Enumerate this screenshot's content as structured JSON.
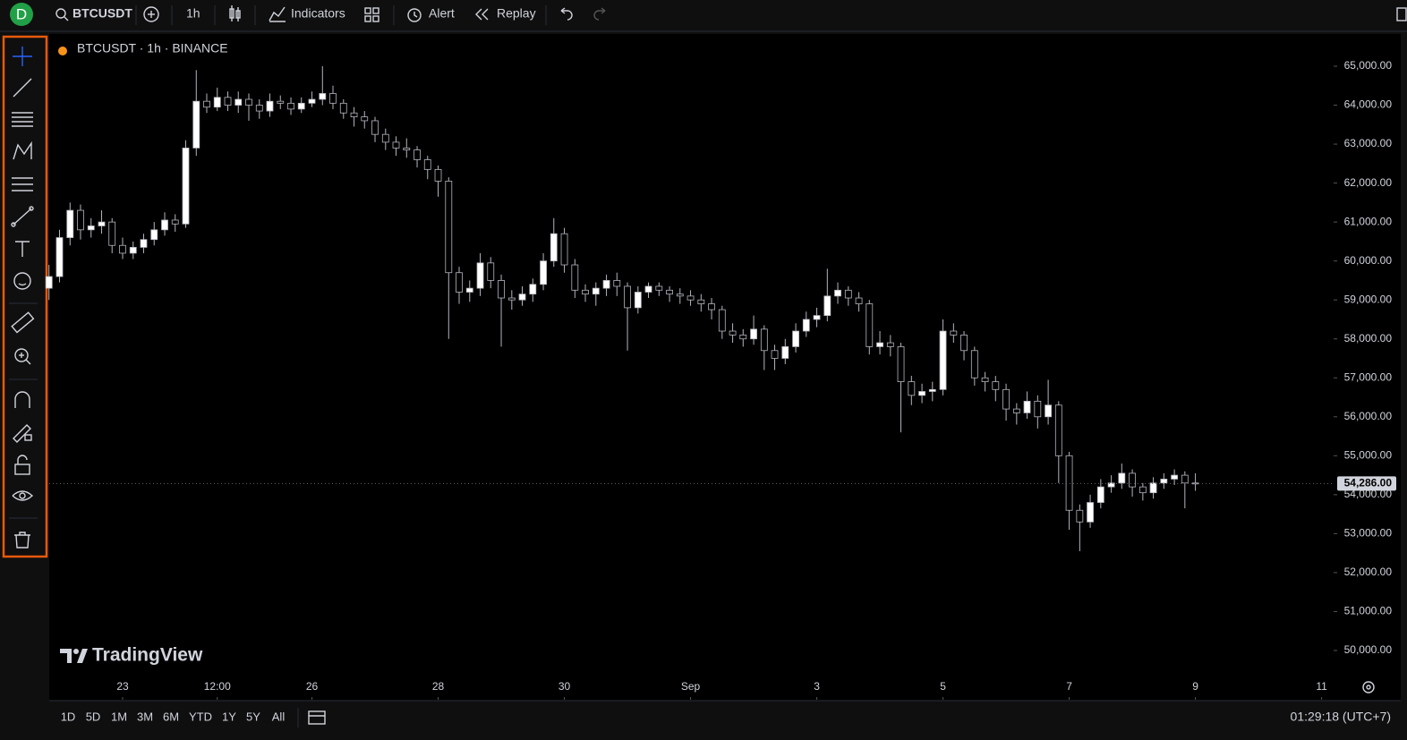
{
  "toolbar": {
    "avatar": "D",
    "symbol": "BTCUSDT",
    "interval": "1h",
    "indicators": "Indicators",
    "alert": "Alert",
    "replay": "Replay"
  },
  "chart_data": {
    "type": "candlestick",
    "title": "BTCUSDT · 1h · BINANCE",
    "watermark": "TradingView",
    "up_color": "#ffffff",
    "down_color": "#000000",
    "wick_color": "#b2b5be",
    "grid": false,
    "x": [
      21.833,
      22,
      22.167,
      22.333,
      22.5,
      22.667,
      22.833,
      23,
      23.167,
      23.333,
      23.5,
      23.667,
      23.833,
      24,
      24.167,
      24.333,
      24.5,
      24.667,
      24.833,
      25,
      25.167,
      25.333,
      25.5,
      25.667,
      25.833,
      26,
      26.167,
      26.333,
      26.5,
      26.667,
      26.833,
      27,
      27.167,
      27.333,
      27.5,
      27.667,
      27.833,
      28,
      28.167,
      28.333,
      28.5,
      28.667,
      28.833,
      29,
      29.167,
      29.333,
      29.5,
      29.667,
      29.833,
      30,
      30.167,
      30.333,
      30.5,
      30.667,
      30.833,
      31,
      31.167,
      31.333,
      31.5,
      31.667,
      31.833,
      32,
      32.167,
      32.333,
      32.5,
      32.667,
      32.833,
      33,
      33.167,
      33.333,
      33.5,
      33.667,
      33.833,
      34,
      34.167,
      34.333,
      34.5,
      34.667,
      34.833,
      35,
      35.167,
      35.333,
      35.5,
      35.667,
      35.833,
      36,
      36.167,
      36.333,
      36.5,
      36.667,
      36.833,
      37,
      37.167,
      37.333,
      37.5,
      37.667,
      37.833,
      38,
      38.167,
      38.333,
      38.5,
      38.667,
      38.833,
      39,
      39.167,
      39.333,
      39.5,
      39.667,
      39.833,
      40
    ],
    "open": [
      59300,
      59600,
      60600,
      61300,
      60800,
      60900,
      61000,
      60400,
      60200,
      60350,
      60550,
      60800,
      61050,
      60950,
      62900,
      64100,
      63950,
      64200,
      64000,
      64150,
      64000,
      63850,
      64100,
      64050,
      63900,
      64050,
      64150,
      64300,
      64050,
      63800,
      63700,
      63600,
      63250,
      63050,
      62900,
      62850,
      62600,
      62350,
      62050,
      59700,
      59200,
      59300,
      59950,
      59500,
      59050,
      59000,
      59150,
      59400,
      60000,
      60700,
      59900,
      59250,
      59150,
      59300,
      59500,
      59350,
      58800,
      59200,
      59350,
      59250,
      59150,
      59100,
      59000,
      58900,
      58750,
      58200,
      58100,
      58000,
      58250,
      57700,
      57500,
      57800,
      58200,
      58500,
      58600,
      59100,
      59250,
      59050,
      58900,
      57800,
      57900,
      57800,
      56900,
      56550,
      56650,
      56700,
      58200,
      58100,
      57700,
      57000,
      56900,
      56700,
      56200,
      56100,
      56400,
      56000,
      56300,
      55000,
      53600,
      53300,
      53800,
      54200,
      54300,
      54550,
      54200,
      54050,
      54300,
      54400,
      54500,
      54300
    ],
    "high": [
      59900,
      60800,
      61500,
      61450,
      61100,
      61300,
      61100,
      60600,
      60500,
      60700,
      61000,
      61250,
      61200,
      63100,
      64900,
      64300,
      64450,
      64350,
      64350,
      64300,
      64150,
      64300,
      64250,
      64200,
      64200,
      64350,
      65000,
      64500,
      64150,
      63950,
      63850,
      63700,
      63400,
      63200,
      63150,
      62950,
      62700,
      62450,
      62150,
      59850,
      59500,
      60200,
      60100,
      59650,
      59250,
      59350,
      59550,
      60200,
      61100,
      60850,
      60050,
      59400,
      59450,
      59650,
      59700,
      59450,
      59350,
      59450,
      59450,
      59350,
      59300,
      59250,
      59150,
      59050,
      58850,
      58400,
      58250,
      58600,
      58350,
      57850,
      58000,
      58400,
      58700,
      58800,
      59800,
      59450,
      59350,
      59200,
      59000,
      58200,
      58100,
      57900,
      57050,
      56850,
      56900,
      58500,
      58400,
      58200,
      57800,
      57150,
      57050,
      56850,
      56350,
      56650,
      56550,
      56950,
      56400,
      55100,
      53750,
      54000,
      54400,
      54500,
      54800,
      54650,
      54300,
      54450,
      54550,
      54650,
      54600,
      54550
    ],
    "low": [
      59000,
      59450,
      60400,
      60550,
      60600,
      60700,
      60200,
      60050,
      60050,
      60200,
      60400,
      60650,
      60750,
      60850,
      62700,
      63800,
      63850,
      63850,
      63800,
      63600,
      63650,
      63700,
      63900,
      63750,
      63800,
      63950,
      64000,
      63900,
      63650,
      63450,
      63400,
      63050,
      62850,
      62700,
      62650,
      62400,
      62100,
      61650,
      58000,
      58900,
      58950,
      59100,
      59300,
      57800,
      58750,
      58850,
      58950,
      59250,
      59850,
      59700,
      59050,
      58950,
      58850,
      59100,
      59100,
      57700,
      58650,
      59050,
      59100,
      58950,
      58900,
      58850,
      58700,
      58500,
      58000,
      57900,
      57800,
      57850,
      57200,
      57200,
      57350,
      57650,
      58050,
      58300,
      58450,
      58900,
      58850,
      58700,
      57600,
      57600,
      57550,
      55600,
      56300,
      56350,
      56400,
      56550,
      57900,
      57450,
      56800,
      56650,
      56400,
      55900,
      55800,
      55950,
      55700,
      55800,
      54300,
      53100,
      52550,
      53150,
      53650,
      54050,
      54150,
      53950,
      53850,
      53900,
      54150,
      54250,
      53650,
      54100
    ],
    "close": [
      59600,
      60600,
      61300,
      60800,
      60900,
      61000,
      60400,
      60200,
      60350,
      60550,
      60800,
      61050,
      60950,
      62900,
      64100,
      63950,
      64200,
      64000,
      64150,
      64000,
      63850,
      64100,
      64050,
      63900,
      64050,
      64150,
      64300,
      64050,
      63800,
      63700,
      63600,
      63250,
      63050,
      62900,
      62850,
      62600,
      62350,
      62050,
      59700,
      59200,
      59300,
      59950,
      59500,
      59050,
      59000,
      59150,
      59400,
      60000,
      60700,
      59900,
      59250,
      59150,
      59300,
      59500,
      59350,
      58800,
      59200,
      59350,
      59250,
      59150,
      59100,
      59000,
      58900,
      58750,
      58200,
      58100,
      58000,
      58250,
      57700,
      57500,
      57800,
      58200,
      58500,
      58600,
      59100,
      59250,
      59050,
      58900,
      57800,
      57900,
      57800,
      56900,
      56550,
      56650,
      56700,
      58200,
      58100,
      57700,
      57000,
      56900,
      56700,
      56200,
      56100,
      56400,
      56000,
      56300,
      55000,
      53600,
      53300,
      53800,
      54200,
      54300,
      54550,
      54200,
      54050,
      54300,
      54400,
      54500,
      54300,
      54286
    ],
    "xlim": [
      21.837,
      42.19
    ],
    "xticks": [
      23,
      {
        "value": 24.5,
        "label": "12:00"
      },
      26,
      28,
      30,
      {
        "value": 32,
        "label": "Sep"
      },
      {
        "value": 34,
        "label": "3"
      },
      {
        "value": 36,
        "label": "5"
      },
      {
        "value": 38,
        "label": "7"
      },
      {
        "value": 40,
        "label": "9"
      },
      {
        "value": 42,
        "label": "11"
      }
    ],
    "ylim": [
      48736,
      65827
    ],
    "yticks": [
      {
        "value": 50000,
        "label": "50,000.00"
      },
      {
        "value": 51000,
        "label": "51,000.00"
      },
      {
        "value": 52000,
        "label": "52,000.00"
      },
      {
        "value": 53000,
        "label": "53,000.00"
      },
      {
        "value": 54000,
        "label": "54,000.00"
      },
      {
        "value": 55000,
        "label": "55,000.00"
      },
      {
        "value": 56000,
        "label": "56,000.00"
      },
      {
        "value": 57000,
        "label": "57,000.00"
      },
      {
        "value": 58000,
        "label": "58,000.00"
      },
      {
        "value": 59000,
        "label": "59,000.00"
      },
      {
        "value": 60000,
        "label": "60,000.00"
      },
      {
        "value": 61000,
        "label": "61,000.00"
      },
      {
        "value": 62000,
        "label": "62,000.00"
      },
      {
        "value": 63000,
        "label": "63,000.00"
      },
      {
        "value": 64000,
        "label": "64,000.00"
      },
      {
        "value": 65000,
        "label": "65,000.00"
      }
    ],
    "last_price": {
      "value": 54286,
      "label": "54,286.00"
    }
  },
  "range_bar": {
    "ranges": [
      "1D",
      "5D",
      "1M",
      "3M",
      "6M",
      "YTD",
      "1Y",
      "5Y",
      "All"
    ],
    "clock": "01:29:18 (UTC+7)"
  }
}
